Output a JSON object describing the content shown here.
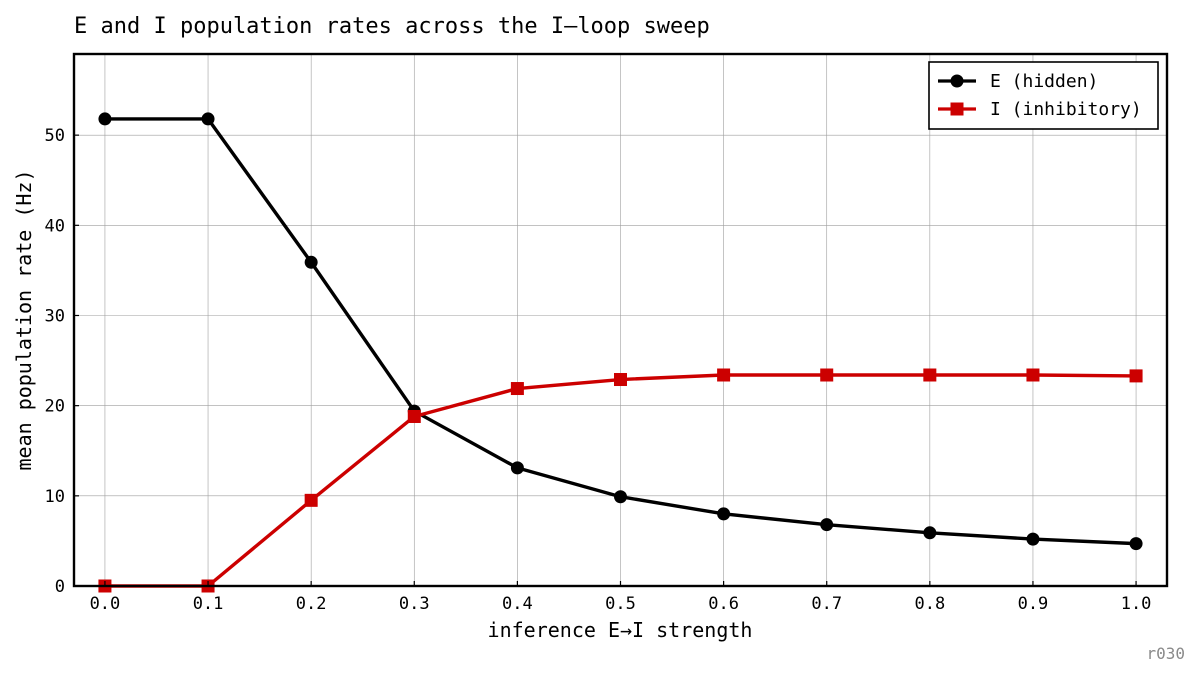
{
  "chart_data": {
    "type": "line",
    "title": "E and I population rates across the I–loop sweep",
    "xlabel": "inference E→I strength",
    "ylabel": "mean population rate (Hz)",
    "xlim": [
      -0.03,
      1.03
    ],
    "ylim": [
      0,
      59
    ],
    "x": [
      0.0,
      0.1,
      0.2,
      0.3,
      0.4,
      0.5,
      0.6,
      0.7,
      0.8,
      0.9,
      1.0
    ],
    "x_ticks": [
      "0.0",
      "0.1",
      "0.2",
      "0.3",
      "0.4",
      "0.5",
      "0.6",
      "0.7",
      "0.8",
      "0.9",
      "1.0"
    ],
    "y_ticks": [
      "0",
      "10",
      "20",
      "30",
      "40",
      "50"
    ],
    "grid": true,
    "legend_position": "top-right",
    "series": [
      {
        "name": "E (hidden)",
        "color": "#000000",
        "marker": "circle",
        "values": [
          51.8,
          51.8,
          35.9,
          19.4,
          13.1,
          9.9,
          8.0,
          6.8,
          5.9,
          5.2,
          4.7
        ]
      },
      {
        "name": "I (inhibitory)",
        "color": "#cc0000",
        "marker": "square",
        "values": [
          0.0,
          0.0,
          9.5,
          18.8,
          21.9,
          22.9,
          23.4,
          23.4,
          23.4,
          23.4,
          23.3
        ]
      }
    ]
  },
  "footer": {
    "tag": "r030"
  }
}
